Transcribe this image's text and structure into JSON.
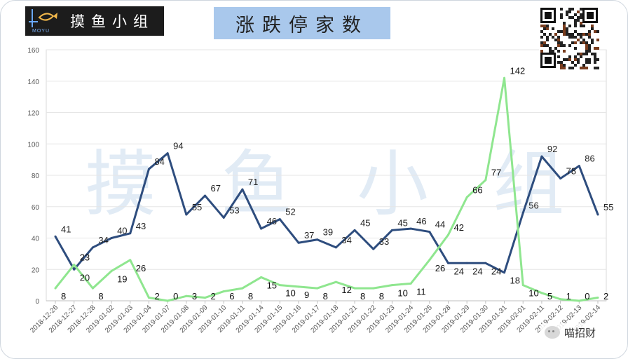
{
  "header": {
    "logo_text": "摸鱼小组",
    "logo_sub": "MOYU",
    "title": "涨跌停家数"
  },
  "watermark": "摸鱼小组",
  "badge": {
    "text": "喵招财"
  },
  "colors": {
    "up_series": "#2e4d7e",
    "down_series": "#8fe68f",
    "title_bg": "#a9c8ec"
  },
  "chart_data": {
    "type": "line",
    "x": [
      "2018-12-26",
      "2018-12-27",
      "2018-12-28",
      "2019-01-02",
      "2019-01-03",
      "2019-01-04",
      "2019-01-07",
      "2019-01-08",
      "2019-01-09",
      "2019-01-10",
      "2019-01-11",
      "2019-01-14",
      "2019-01-15",
      "2019-01-16",
      "2019-01-17",
      "2019-01-18",
      "2019-01-21",
      "2019-01-22",
      "2019-01-23",
      "2019-01-24",
      "2019-01-25",
      "2019-01-28",
      "2019-01-29",
      "2019-01-30",
      "2019-01-31",
      "2019-02-01",
      "2019-02-11",
      "2019-02-12",
      "2019-02-13",
      "2019-02-14"
    ],
    "ylim": [
      0,
      160
    ],
    "yticks": [
      0,
      20,
      40,
      60,
      80,
      100,
      120,
      140,
      160
    ],
    "grid": true,
    "legend": "none",
    "series": [
      {
        "values": [
          41,
          20,
          34,
          40,
          43,
          84,
          94,
          55,
          67,
          53,
          71,
          46,
          52,
          37,
          39,
          34,
          45,
          33,
          45,
          46,
          44,
          24,
          24,
          24,
          18,
          56,
          92,
          78,
          86,
          55
        ]
      },
      {
        "values": [
          8,
          23,
          8,
          19,
          26,
          2,
          0,
          3,
          2,
          6,
          8,
          15,
          10,
          9,
          8,
          12,
          8,
          8,
          10,
          11,
          26,
          42,
          66,
          77,
          142,
          10,
          5,
          1,
          0,
          2
        ]
      }
    ]
  }
}
